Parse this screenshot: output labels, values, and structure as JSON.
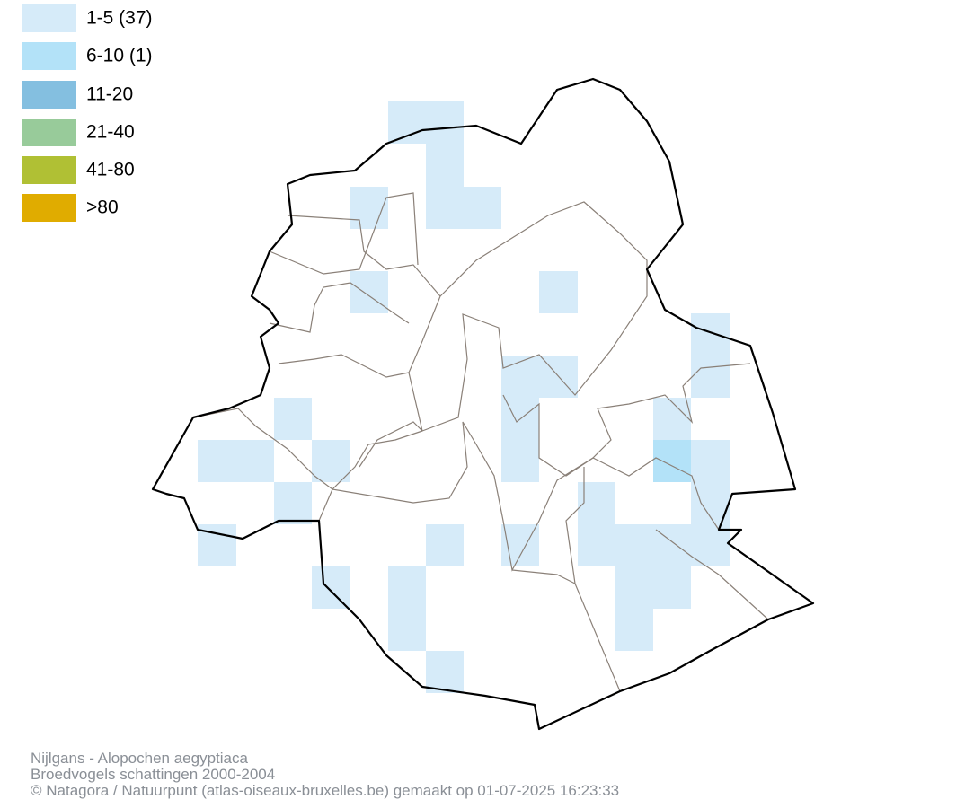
{
  "legend": [
    {
      "label": "1-5 (37)",
      "color": "#d6ebf9"
    },
    {
      "label": "6-10 (1)",
      "color": "#b3e2f8"
    },
    {
      "label": "11-20",
      "color": "#84bfe0"
    },
    {
      "label": "21-40",
      "color": "#98cb9a"
    },
    {
      "label": "41-80",
      "color": "#b0c034"
    },
    {
      "label": ">80",
      "color": "#e0ac00"
    }
  ],
  "footer": [
    "Nijlgans - Alopochen aegyptiaca",
    "Broedvogels schattingen 2000-2004",
    "© Natagora / Natuurpunt (atlas-oiseaux-bruxelles.be) gemaakt op 01-07-2025 16:23:33"
  ]
}
